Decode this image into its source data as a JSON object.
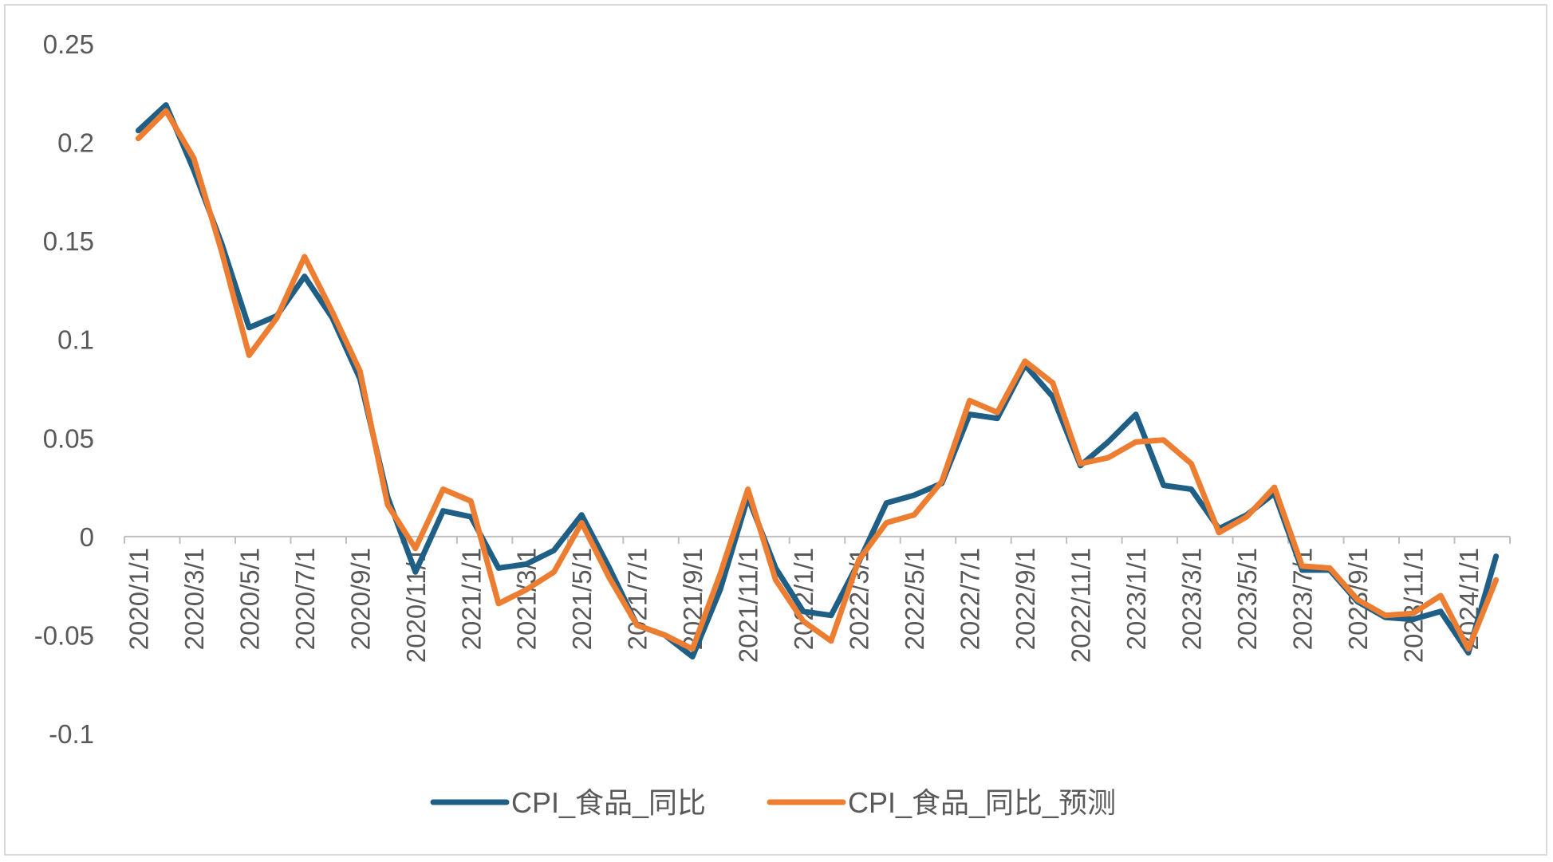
{
  "chart_data": {
    "type": "line",
    "title": "",
    "xlabel": "",
    "ylabel": "",
    "ylim": [
      -0.1,
      0.25
    ],
    "yticks": [
      "0.25",
      "0.2",
      "0.15",
      "0.1",
      "0.05",
      "0",
      "-0.05",
      "-0.1"
    ],
    "ytick_values": [
      0.25,
      0.2,
      0.15,
      0.1,
      0.05,
      0,
      -0.05,
      -0.1
    ],
    "xtick_labels": [
      "2020/1/1",
      "2020/3/1",
      "2020/5/1",
      "2020/7/1",
      "2020/9/1",
      "2020/11/1",
      "2021/1/1",
      "2021/3/1",
      "2021/5/1",
      "2021/7/1",
      "2021/9/1",
      "2021/11/1",
      "2022/1/1",
      "2022/3/1",
      "2022/5/1",
      "2022/7/1",
      "2022/9/1",
      "2022/11/1",
      "2023/1/1",
      "2023/3/1",
      "2023/5/1",
      "2023/7/1",
      "2023/9/1",
      "2023/11/1",
      "2024/1/1"
    ],
    "x": [
      "2020/1",
      "2020/2",
      "2020/3",
      "2020/4",
      "2020/5",
      "2020/6",
      "2020/7",
      "2020/8",
      "2020/9",
      "2020/10",
      "2020/11",
      "2020/12",
      "2021/1",
      "2021/2",
      "2021/3",
      "2021/4",
      "2021/5",
      "2021/6",
      "2021/7",
      "2021/8",
      "2021/9",
      "2021/10",
      "2021/11",
      "2021/12",
      "2022/1",
      "2022/2",
      "2022/3",
      "2022/4",
      "2022/5",
      "2022/6",
      "2022/7",
      "2022/8",
      "2022/9",
      "2022/10",
      "2022/11",
      "2022/12",
      "2023/1",
      "2023/2",
      "2023/3",
      "2023/4",
      "2023/5",
      "2023/6",
      "2023/7",
      "2023/8",
      "2023/9",
      "2023/10",
      "2023/11",
      "2023/12",
      "2024/1",
      "2024/2"
    ],
    "grid": false,
    "legend_position": "bottom",
    "series": [
      {
        "name": "CPI_食品_同比",
        "color": "#1f5f86",
        "values": [
          0.206,
          0.219,
          0.186,
          0.149,
          0.106,
          0.112,
          0.132,
          0.111,
          0.08,
          0.02,
          -0.018,
          0.013,
          0.01,
          -0.016,
          -0.014,
          -0.007,
          0.011,
          -0.016,
          -0.045,
          -0.05,
          -0.061,
          -0.027,
          0.02,
          -0.016,
          -0.038,
          -0.04,
          -0.013,
          0.017,
          0.021,
          0.027,
          0.062,
          0.06,
          0.087,
          0.071,
          0.036,
          0.048,
          0.062,
          0.026,
          0.024,
          0.004,
          0.011,
          0.022,
          -0.017,
          -0.017,
          -0.033,
          -0.041,
          -0.042,
          -0.038,
          -0.059,
          -0.01
        ]
      },
      {
        "name": "CPI_食品_同比_预测",
        "color": "#ed7d31",
        "values": [
          0.202,
          0.216,
          0.192,
          0.145,
          0.092,
          0.111,
          0.142,
          0.114,
          0.084,
          0.016,
          -0.006,
          0.024,
          0.018,
          -0.034,
          -0.027,
          -0.018,
          0.007,
          -0.021,
          -0.045,
          -0.05,
          -0.057,
          -0.019,
          0.024,
          -0.022,
          -0.043,
          -0.053,
          -0.012,
          0.007,
          0.011,
          0.028,
          0.069,
          0.063,
          0.089,
          0.078,
          0.037,
          0.04,
          0.048,
          0.049,
          0.037,
          0.002,
          0.01,
          0.025,
          -0.015,
          -0.016,
          -0.032,
          -0.04,
          -0.039,
          -0.03,
          -0.057,
          -0.022
        ]
      }
    ]
  }
}
